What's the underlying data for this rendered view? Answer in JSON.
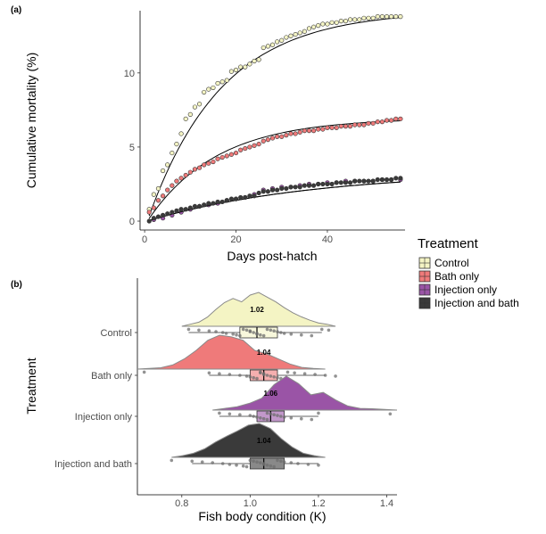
{
  "colors": {
    "Control": "#f4f4c4",
    "Bath only": "#ef7a7a",
    "Injection only": "#9a54a6",
    "Injection and bath": "#3a3a3a"
  },
  "chart_data": [
    {
      "panel": "(a)",
      "type": "scatter",
      "xlabel": "Days post-hatch",
      "ylabel": "Cumulative mortality (%)",
      "xlim": [
        -1,
        57
      ],
      "ylim": [
        -0.6,
        14.2
      ],
      "xticks": [
        "0",
        "20",
        "40"
      ],
      "yticks": [
        "0",
        "5",
        "10"
      ],
      "grid": false,
      "series": [
        {
          "name": "Control",
          "asymptote": 14.2,
          "rate": 0.062,
          "x": [
            1,
            2,
            3,
            4,
            5,
            6,
            7,
            8,
            9,
            10,
            11,
            12,
            13,
            14,
            15,
            16,
            17,
            18,
            19,
            20,
            21,
            22,
            23,
            24,
            25,
            26,
            27,
            28,
            29,
            30,
            31,
            32,
            33,
            34,
            35,
            36,
            37,
            38,
            39,
            40,
            41,
            42,
            43,
            44,
            45,
            46,
            47,
            48,
            49,
            50,
            51,
            52,
            53,
            54,
            55,
            56
          ],
          "y": [
            0.8,
            1.8,
            2.2,
            3.4,
            3.8,
            4.6,
            5.2,
            5.9,
            6.9,
            7.2,
            7.7,
            7.9,
            8.7,
            8.9,
            9.0,
            9.3,
            9.4,
            9.5,
            10.1,
            10.2,
            10.4,
            10.4,
            10.6,
            10.8,
            10.9,
            11.7,
            11.8,
            11.9,
            12.1,
            12.2,
            12.4,
            12.5,
            12.6,
            12.7,
            12.8,
            13.0,
            13.1,
            13.2,
            13.3,
            13.3,
            13.4,
            13.4,
            13.5,
            13.5,
            13.6,
            13.6,
            13.6,
            13.7,
            13.7,
            13.7,
            13.8,
            13.8,
            13.8,
            13.8,
            13.8,
            13.8
          ]
        },
        {
          "name": "Bath only",
          "asymptote": 6.95,
          "rate": 0.066,
          "x": [
            1,
            2,
            3,
            4,
            5,
            6,
            7,
            8,
            9,
            10,
            11,
            12,
            13,
            14,
            15,
            16,
            17,
            18,
            19,
            20,
            21,
            22,
            23,
            24,
            25,
            26,
            27,
            28,
            29,
            30,
            31,
            32,
            33,
            34,
            35,
            36,
            37,
            38,
            39,
            40,
            41,
            42,
            43,
            44,
            45,
            46,
            47,
            48,
            49,
            50,
            51,
            52,
            53,
            54,
            55,
            56
          ],
          "y": [
            0.6,
            0.9,
            1.4,
            1.7,
            2.1,
            2.4,
            2.7,
            2.9,
            3.1,
            3.3,
            3.5,
            3.6,
            3.8,
            3.9,
            4.0,
            4.2,
            4.3,
            4.4,
            4.5,
            4.6,
            4.8,
            4.9,
            5.0,
            5.1,
            5.2,
            5.4,
            5.5,
            5.6,
            5.7,
            5.7,
            5.8,
            5.9,
            5.9,
            6.0,
            6.1,
            6.1,
            6.1,
            6.2,
            6.2,
            6.3,
            6.3,
            6.3,
            6.4,
            6.4,
            6.4,
            6.5,
            6.5,
            6.5,
            6.6,
            6.6,
            6.7,
            6.7,
            6.8,
            6.8,
            6.9,
            6.9
          ]
        },
        {
          "name": "Injection only",
          "asymptote": 3.35,
          "rate": 0.028,
          "x": [
            2,
            4,
            6,
            8,
            10,
            12,
            14,
            16,
            18,
            20,
            22,
            24,
            26,
            28,
            30,
            32,
            34,
            36,
            38,
            40,
            42,
            44,
            46,
            48,
            50,
            52,
            54,
            56
          ],
          "y": [
            0.1,
            0.2,
            0.4,
            0.6,
            0.8,
            1.0,
            1.1,
            1.2,
            1.4,
            1.5,
            1.6,
            1.8,
            2.1,
            2.2,
            2.3,
            2.3,
            2.4,
            2.5,
            2.5,
            2.6,
            2.6,
            2.7,
            2.7,
            2.7,
            2.7,
            2.8,
            2.8,
            2.8
          ]
        },
        {
          "name": "Injection and bath",
          "asymptote": 3.35,
          "rate": 0.028,
          "x": [
            1,
            2,
            3,
            4,
            5,
            6,
            7,
            8,
            9,
            10,
            11,
            12,
            13,
            14,
            15,
            16,
            17,
            18,
            19,
            20,
            21,
            22,
            23,
            24,
            25,
            26,
            27,
            28,
            29,
            30,
            31,
            32,
            33,
            34,
            35,
            36,
            37,
            38,
            39,
            40,
            41,
            42,
            43,
            44,
            45,
            46,
            47,
            48,
            49,
            50,
            51,
            52,
            53,
            54,
            55,
            56
          ],
          "y": [
            0.0,
            0.2,
            0.3,
            0.4,
            0.5,
            0.6,
            0.7,
            0.8,
            0.8,
            0.9,
            1.0,
            1.0,
            1.1,
            1.2,
            1.2,
            1.3,
            1.3,
            1.4,
            1.5,
            1.5,
            1.6,
            1.6,
            1.7,
            1.7,
            1.9,
            2.0,
            2.0,
            2.1,
            2.1,
            2.2,
            2.2,
            2.3,
            2.3,
            2.3,
            2.4,
            2.4,
            2.4,
            2.5,
            2.5,
            2.5,
            2.5,
            2.6,
            2.6,
            2.6,
            2.6,
            2.7,
            2.7,
            2.7,
            2.7,
            2.7,
            2.8,
            2.8,
            2.8,
            2.8,
            2.9,
            2.9
          ]
        }
      ]
    },
    {
      "panel": "(b)",
      "type": "box",
      "xlabel": "Fish body condition (K)",
      "ylabel": "Treatment",
      "xlim": [
        0.67,
        1.43
      ],
      "xticks": [
        "0.8",
        "1.0",
        "1.2",
        "1.4"
      ],
      "grid": false,
      "categories": [
        "Control",
        "Bath only",
        "Injection only",
        "Injection and bath"
      ],
      "medians": [
        1.02,
        1.04,
        1.06,
        1.04
      ],
      "median_labels": [
        "1.02",
        "1.04",
        "1.06",
        "1.04"
      ],
      "boxes": [
        {
          "q1": 0.97,
          "q3": 1.08,
          "whisker_low": 0.82,
          "whisker_high": 1.21
        },
        {
          "q1": 1.0,
          "q3": 1.08,
          "whisker_low": 0.88,
          "whisker_high": 1.22
        },
        {
          "q1": 1.02,
          "q3": 1.1,
          "whisker_low": 0.91,
          "whisker_high": 1.2
        },
        {
          "q1": 1.0,
          "q3": 1.1,
          "whisker_low": 0.83,
          "whisker_high": 1.2
        }
      ],
      "points": [
        [
          0.82,
          0.85,
          0.88,
          0.9,
          0.92,
          0.93,
          0.95,
          0.96,
          0.97,
          0.98,
          0.99,
          1.0,
          1.0,
          1.01,
          1.02,
          1.02,
          1.03,
          1.04,
          1.05,
          1.06,
          1.07,
          1.08,
          1.09,
          1.1,
          1.12,
          1.15,
          1.18,
          1.21,
          1.23
        ],
        [
          0.69,
          0.88,
          0.91,
          0.94,
          0.97,
          0.99,
          1.0,
          1.01,
          1.02,
          1.03,
          1.03,
          1.04,
          1.04,
          1.05,
          1.06,
          1.07,
          1.08,
          1.09,
          1.11,
          1.13,
          1.16,
          1.19,
          1.22,
          1.25
        ],
        [
          0.91,
          0.94,
          0.97,
          1.0,
          1.01,
          1.02,
          1.03,
          1.04,
          1.05,
          1.05,
          1.06,
          1.07,
          1.08,
          1.09,
          1.1,
          1.12,
          1.15,
          1.18,
          1.2,
          1.41
        ],
        [
          0.77,
          0.83,
          0.86,
          0.89,
          0.92,
          0.94,
          0.96,
          0.98,
          0.99,
          1.0,
          1.01,
          1.02,
          1.03,
          1.04,
          1.04,
          1.05,
          1.06,
          1.07,
          1.08,
          1.09,
          1.1,
          1.12,
          1.14,
          1.17,
          1.2
        ]
      ],
      "densities": [
        [
          0.0,
          0.06,
          0.12,
          0.27,
          0.5,
          0.7,
          0.82,
          0.72,
          0.92,
          1.0,
          0.86,
          0.72,
          0.55,
          0.4,
          0.28,
          0.18,
          0.1,
          0.06,
          0.0
        ],
        [
          0.0,
          0.02,
          0.04,
          0.12,
          0.3,
          0.55,
          0.85,
          1.0,
          0.95,
          0.85,
          0.55,
          0.45,
          0.3,
          0.15,
          0.05,
          0.02,
          0.0
        ],
        [
          0.0,
          0.05,
          0.1,
          0.2,
          0.35,
          0.75,
          1.0,
          0.78,
          0.45,
          0.52,
          0.3,
          0.12,
          0.05,
          0.04,
          0.02,
          0.0
        ],
        [
          0.0,
          0.05,
          0.12,
          0.25,
          0.45,
          0.62,
          0.78,
          0.95,
          1.0,
          0.85,
          0.55,
          0.3,
          0.12,
          0.05,
          0.0
        ]
      ],
      "density_range": [
        [
          0.8,
          1.25
        ],
        [
          0.67,
          1.22
        ],
        [
          0.89,
          1.43
        ],
        [
          0.77,
          1.22
        ]
      ]
    }
  ],
  "legend": {
    "title": "Treatment",
    "items": [
      "Control",
      "Bath only",
      "Injection only",
      "Injection and bath"
    ]
  }
}
